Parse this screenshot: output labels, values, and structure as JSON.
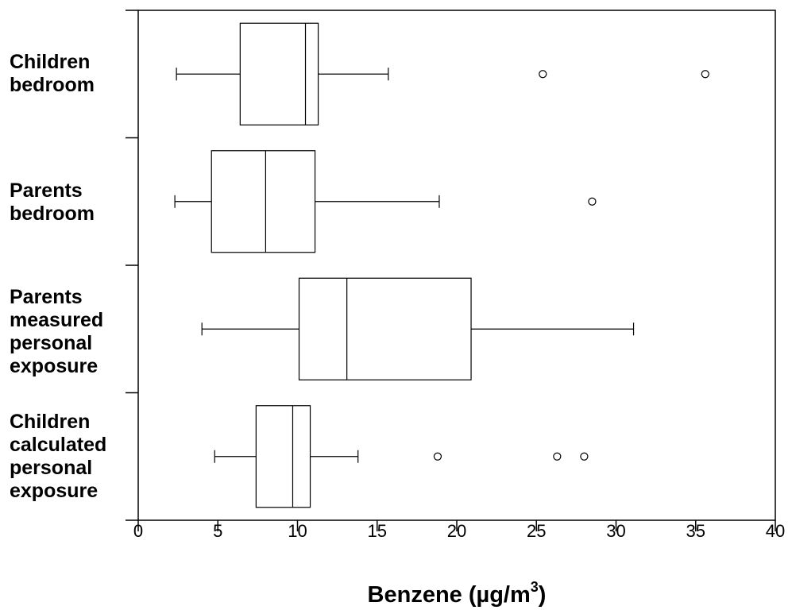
{
  "chart_data": {
    "type": "boxplot",
    "orientation": "horizontal",
    "title": "",
    "xlabel": "Benzene (µg/m",
    "xlabel_superscript": "3",
    "xlabel_suffix": ")",
    "ylabel": "",
    "xlim": [
      0,
      40
    ],
    "xticks": [
      0,
      5,
      10,
      15,
      20,
      25,
      30,
      35,
      40
    ],
    "grid": false,
    "categories": [
      {
        "label_lines": [
          "Children",
          "bedroom"
        ],
        "whisker_low": 2.4,
        "q1": 6.4,
        "median": 10.5,
        "q3": 11.3,
        "whisker_high": 15.7,
        "outliers": [
          25.4,
          35.6
        ]
      },
      {
        "label_lines": [
          "Parents",
          "bedroom"
        ],
        "whisker_low": 2.3,
        "q1": 4.6,
        "median": 8.0,
        "q3": 11.1,
        "whisker_high": 18.9,
        "outliers": [
          28.5
        ]
      },
      {
        "label_lines": [
          "Parents",
          "measured",
          "personal",
          "exposure"
        ],
        "whisker_low": 4.0,
        "q1": 10.1,
        "median": 13.1,
        "q3": 20.9,
        "whisker_high": 31.1,
        "outliers": []
      },
      {
        "label_lines": [
          "Children",
          "calculated",
          "personal",
          "exposure"
        ],
        "whisker_low": 4.8,
        "q1": 7.4,
        "median": 9.7,
        "q3": 10.8,
        "whisker_high": 13.8,
        "outliers": [
          18.8,
          26.3,
          28.0
        ]
      }
    ]
  }
}
